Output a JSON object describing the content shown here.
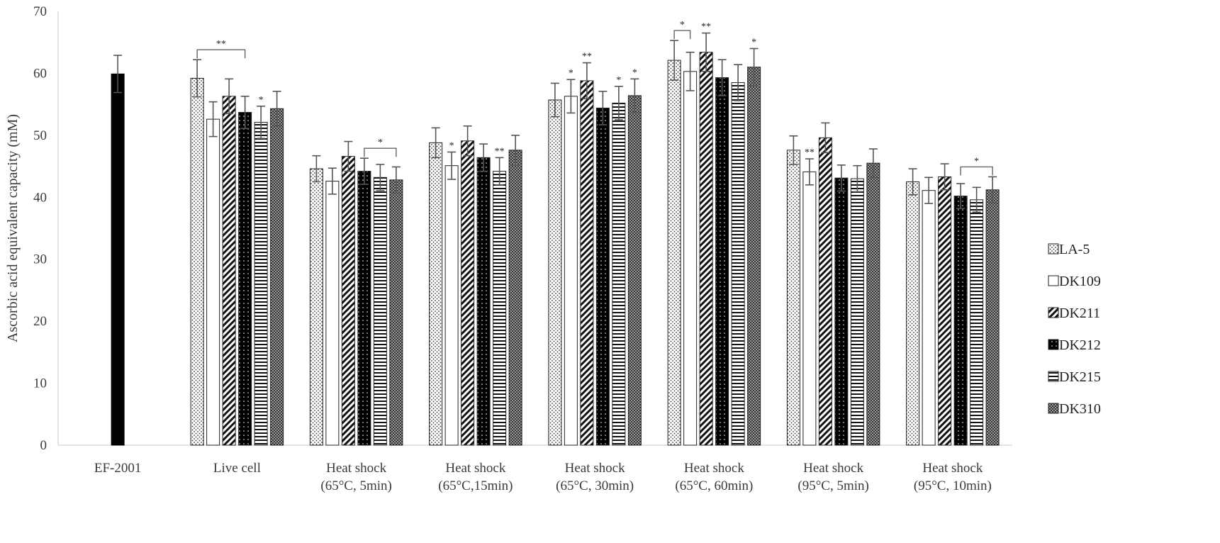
{
  "chart_data": {
    "type": "bar",
    "title": "",
    "xlabel": "",
    "ylabel": "Ascorbic acid equivalent capacity (mM)",
    "ylim": [
      0,
      70
    ],
    "yticks": [
      0,
      10,
      20,
      30,
      40,
      50,
      60,
      70
    ],
    "grid": false,
    "legend_position": "right",
    "categories": [
      [
        "EF-2001"
      ],
      [
        "Live cell"
      ],
      [
        "Heat shock",
        "(65°C, 5min)"
      ],
      [
        "Heat shock",
        "(65°C,15min)"
      ],
      [
        "Heat shock",
        "(65°C, 30min)"
      ],
      [
        "Heat shock",
        "(65°C, 60min)"
      ],
      [
        "Heat shock",
        "(95°C, 5min)"
      ],
      [
        "Heat shock",
        "(95°C, 10min)"
      ]
    ],
    "reference": {
      "name": "EF-2001",
      "category_index": 0,
      "value": 59.9,
      "error": 3.0,
      "color": "#000000"
    },
    "series": [
      {
        "name": "LA-5",
        "pattern": "dots",
        "values": [
          null,
          59.2,
          44.6,
          48.8,
          55.7,
          62.1,
          47.6,
          42.5
        ],
        "errors": [
          null,
          3.0,
          2.1,
          2.4,
          2.7,
          3.2,
          2.3,
          2.1
        ]
      },
      {
        "name": "DK109",
        "pattern": "blank",
        "values": [
          null,
          52.6,
          42.6,
          45.1,
          56.3,
          60.3,
          44.1,
          41.1
        ],
        "errors": [
          null,
          2.8,
          2.1,
          2.2,
          2.7,
          3.1,
          2.1,
          2.1
        ]
      },
      {
        "name": "DK211",
        "pattern": "diag",
        "values": [
          null,
          56.3,
          46.6,
          49.1,
          58.8,
          63.4,
          49.6,
          43.3
        ],
        "errors": [
          null,
          2.8,
          2.4,
          2.4,
          2.9,
          3.1,
          2.4,
          2.1
        ]
      },
      {
        "name": "DK212",
        "pattern": "darkdots",
        "values": [
          null,
          53.7,
          44.2,
          46.4,
          54.4,
          59.3,
          43.1,
          40.2
        ],
        "errors": [
          null,
          2.6,
          2.1,
          2.2,
          2.7,
          2.9,
          2.1,
          2.0
        ]
      },
      {
        "name": "DK215",
        "pattern": "hlines",
        "values": [
          null,
          52.1,
          43.2,
          44.2,
          55.2,
          58.5,
          43.0,
          39.6
        ],
        "errors": [
          null,
          2.6,
          2.1,
          2.2,
          2.7,
          2.9,
          2.1,
          2.0
        ]
      },
      {
        "name": "DK310",
        "pattern": "check",
        "values": [
          null,
          54.3,
          42.8,
          47.6,
          56.4,
          61.0,
          45.5,
          41.2
        ],
        "errors": [
          null,
          2.8,
          2.1,
          2.4,
          2.7,
          3.0,
          2.3,
          2.1
        ]
      }
    ],
    "annotations": [
      {
        "text": "**",
        "category": 1,
        "bracket": [
          0,
          3
        ]
      },
      {
        "text": "*",
        "category": 1,
        "bar": 4
      },
      {
        "text": "*",
        "category": 2,
        "bracket": [
          3,
          5
        ]
      },
      {
        "text": "*",
        "category": 3,
        "bar": 1
      },
      {
        "text": "**",
        "category": 3,
        "bar": 4
      },
      {
        "text": "*",
        "category": 4,
        "bar": 1
      },
      {
        "text": "**",
        "category": 4,
        "bar": 2
      },
      {
        "text": "*",
        "category": 4,
        "bar": 4
      },
      {
        "text": "*",
        "category": 4,
        "bar": 5
      },
      {
        "text": "*",
        "category": 5,
        "bracket": [
          0,
          1
        ]
      },
      {
        "text": "**",
        "category": 5,
        "bar": 2
      },
      {
        "text": "*",
        "category": 5,
        "bar": 5
      },
      {
        "text": "**",
        "category": 6,
        "bar": 1
      },
      {
        "text": "*",
        "category": 7,
        "bracket": [
          3,
          5
        ]
      }
    ]
  }
}
